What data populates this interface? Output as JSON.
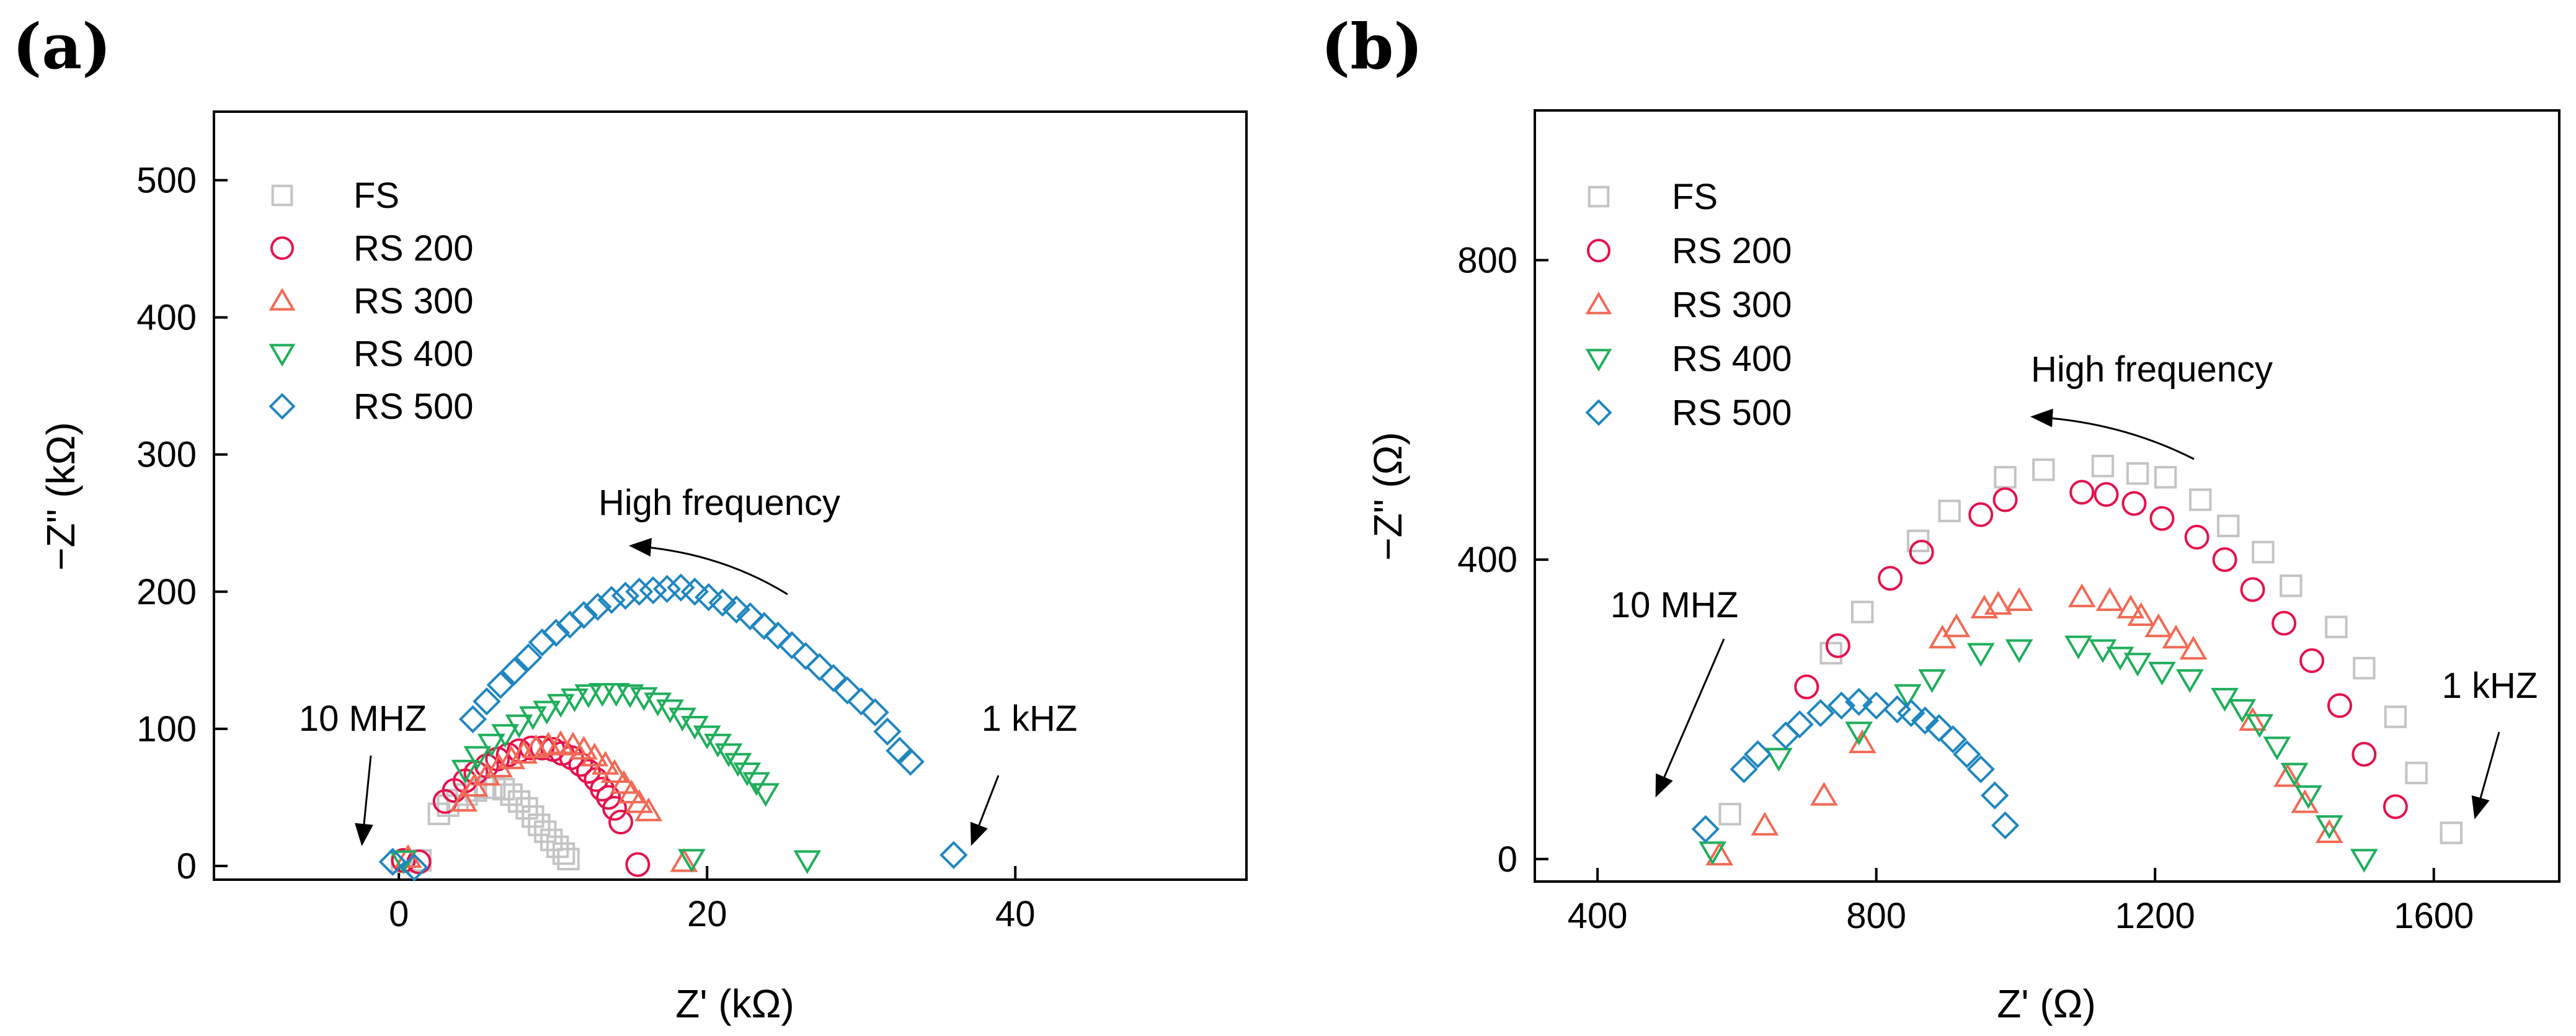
{
  "colors": {
    "FS": "#c4c4c4",
    "RS 200": "#e5124c",
    "RS 300": "#f26a55",
    "RS 400": "#1fae5b",
    "RS 500": "#1f86c0"
  },
  "markers": {
    "FS": "square",
    "RS 200": "circle",
    "RS 300": "triangle-up",
    "RS 400": "triangle-down",
    "RS 500": "diamond"
  },
  "chart_data": [
    {
      "type": "scatter",
      "panel_label": "(a)",
      "xlabel": "Z' (kΩ)",
      "ylabel": "−Z\" (kΩ)",
      "xlim": [
        -12,
        55
      ],
      "ylim": [
        -10,
        550
      ],
      "xticks": [
        0,
        20,
        40
      ],
      "yticks": [
        0,
        100,
        200,
        300,
        400,
        500
      ],
      "legend_position": "top-left",
      "legend": [
        "FS",
        "RS 200",
        "RS 300",
        "RS 400",
        "RS 500"
      ],
      "annotations": {
        "high_frequency": "High frequency",
        "low_label_left": "10 MHZ",
        "low_label_right": "1 kHZ"
      },
      "series": [
        {
          "name": "FS",
          "points": [
            [
              0.2,
              3
            ],
            [
              1.4,
              4
            ],
            [
              2.6,
              38
            ],
            [
              3.2,
              44
            ],
            [
              3.8,
              48
            ],
            [
              4.4,
              52
            ],
            [
              5.0,
              55
            ],
            [
              5.6,
              57
            ],
            [
              6.2,
              57
            ],
            [
              6.8,
              56
            ],
            [
              7.3,
              52
            ],
            [
              7.8,
              47
            ],
            [
              8.3,
              42
            ],
            [
              8.7,
              36
            ],
            [
              9.1,
              30
            ],
            [
              9.5,
              25
            ],
            [
              9.9,
              19
            ],
            [
              10.3,
              14
            ],
            [
              10.7,
              9
            ],
            [
              11.0,
              5
            ]
          ]
        },
        {
          "name": "RS 200",
          "points": [
            [
              0.3,
              4
            ],
            [
              1.3,
              3
            ],
            [
              3.0,
              47
            ],
            [
              3.6,
              55
            ],
            [
              4.3,
              62
            ],
            [
              5.0,
              68
            ],
            [
              5.7,
              73
            ],
            [
              6.4,
              78
            ],
            [
              7.1,
              81
            ],
            [
              7.8,
              84
            ],
            [
              8.6,
              86
            ],
            [
              9.3,
              86
            ],
            [
              10.0,
              85
            ],
            [
              10.6,
              82
            ],
            [
              11.2,
              79
            ],
            [
              11.8,
              74
            ],
            [
              12.3,
              69
            ],
            [
              12.8,
              63
            ],
            [
              13.2,
              56
            ],
            [
              13.6,
              50
            ],
            [
              14.0,
              42
            ],
            [
              14.4,
              32
            ],
            [
              15.5,
              1
            ]
          ]
        },
        {
          "name": "RS 300",
          "points": [
            [
              0.6,
              6
            ],
            [
              4.2,
              47
            ],
            [
              4.9,
              58
            ],
            [
              5.7,
              66
            ],
            [
              6.5,
              72
            ],
            [
              7.3,
              78
            ],
            [
              8.1,
              82
            ],
            [
              8.9,
              86
            ],
            [
              9.7,
              88
            ],
            [
              10.5,
              89
            ],
            [
              11.3,
              88
            ],
            [
              12.0,
              85
            ],
            [
              12.7,
              80
            ],
            [
              13.4,
              74
            ],
            [
              14.0,
              68
            ],
            [
              14.6,
              60
            ],
            [
              15.1,
              53
            ],
            [
              15.6,
              46
            ],
            [
              16.2,
              40
            ],
            [
              18.5,
              3
            ]
          ]
        },
        {
          "name": "RS 400",
          "points": [
            [
              0.3,
              4
            ],
            [
              4.3,
              70
            ],
            [
              5.1,
              80
            ],
            [
              6.0,
              89
            ],
            [
              6.9,
              96
            ],
            [
              7.8,
              103
            ],
            [
              8.7,
              109
            ],
            [
              9.6,
              113
            ],
            [
              10.5,
              118
            ],
            [
              11.4,
              122
            ],
            [
              12.3,
              125
            ],
            [
              13.2,
              126
            ],
            [
              14.1,
              126
            ],
            [
              15.0,
              125
            ],
            [
              15.9,
              123
            ],
            [
              16.8,
              119
            ],
            [
              17.6,
              114
            ],
            [
              18.4,
              108
            ],
            [
              19.2,
              102
            ],
            [
              20.0,
              95
            ],
            [
              20.7,
              89
            ],
            [
              21.4,
              82
            ],
            [
              22.0,
              75
            ],
            [
              22.6,
              68
            ],
            [
              23.2,
              61
            ],
            [
              23.8,
              53
            ],
            [
              19.0,
              5
            ],
            [
              26.5,
              4
            ]
          ]
        },
        {
          "name": "RS 500",
          "points": [
            [
              -0.4,
              3
            ],
            [
              1.0,
              -1
            ],
            [
              4.8,
              107
            ],
            [
              5.7,
              120
            ],
            [
              6.6,
              132
            ],
            [
              7.5,
              142
            ],
            [
              8.4,
              152
            ],
            [
              9.3,
              163
            ],
            [
              10.2,
              170
            ],
            [
              11.1,
              176
            ],
            [
              12.0,
              183
            ],
            [
              12.9,
              189
            ],
            [
              13.8,
              194
            ],
            [
              14.7,
              197
            ],
            [
              15.6,
              200
            ],
            [
              16.5,
              201
            ],
            [
              17.4,
              202
            ],
            [
              18.3,
              203
            ],
            [
              19.2,
              200
            ],
            [
              20.1,
              196
            ],
            [
              21.0,
              192
            ],
            [
              21.9,
              187
            ],
            [
              22.8,
              182
            ],
            [
              23.7,
              175
            ],
            [
              24.6,
              168
            ],
            [
              25.5,
              161
            ],
            [
              26.4,
              153
            ],
            [
              27.3,
              145
            ],
            [
              28.2,
              137
            ],
            [
              29.1,
              128
            ],
            [
              30.0,
              120
            ],
            [
              30.9,
              112
            ],
            [
              31.7,
              98
            ],
            [
              32.5,
              84
            ],
            [
              33.2,
              76
            ],
            [
              36.0,
              8
            ]
          ]
        }
      ]
    },
    {
      "type": "scatter",
      "panel_label": "(b)",
      "xlabel": "Z' (Ω)",
      "ylabel": "−Z\" (Ω)",
      "xlim": [
        310,
        1780
      ],
      "ylim": [
        -30,
        1000
      ],
      "xticks": [
        400,
        800,
        1200,
        1600
      ],
      "yticks": [
        0,
        400,
        800
      ],
      "legend_position": "top-left",
      "legend": [
        "FS",
        "RS 200",
        "RS 300",
        "RS 400",
        "RS 500"
      ],
      "annotations": {
        "high_frequency": "High frequency",
        "low_label_left": "10 MHZ",
        "low_label_right": "1 kHZ"
      },
      "series": [
        {
          "name": "FS",
          "points": [
            [
              590,
              60
            ],
            [
              735,
              275
            ],
            [
              780,
              330
            ],
            [
              860,
              425
            ],
            [
              905,
              465
            ],
            [
              985,
              510
            ],
            [
              1040,
              520
            ],
            [
              1125,
              525
            ],
            [
              1175,
              515
            ],
            [
              1215,
              510
            ],
            [
              1265,
              480
            ],
            [
              1305,
              445
            ],
            [
              1355,
              410
            ],
            [
              1395,
              365
            ],
            [
              1460,
              310
            ],
            [
              1500,
              255
            ],
            [
              1545,
              190
            ],
            [
              1575,
              115
            ],
            [
              1625,
              35
            ]
          ]
        },
        {
          "name": "RS 200",
          "points": [
            [
              700,
              230
            ],
            [
              745,
              285
            ],
            [
              820,
              375
            ],
            [
              865,
              410
            ],
            [
              950,
              460
            ],
            [
              985,
              480
            ],
            [
              1095,
              490
            ],
            [
              1130,
              487
            ],
            [
              1170,
              475
            ],
            [
              1210,
              455
            ],
            [
              1260,
              430
            ],
            [
              1300,
              400
            ],
            [
              1340,
              360
            ],
            [
              1385,
              315
            ],
            [
              1425,
              265
            ],
            [
              1465,
              205
            ],
            [
              1500,
              140
            ],
            [
              1545,
              70
            ]
          ]
        },
        {
          "name": "RS 300",
          "points": [
            [
              575,
              5
            ],
            [
              640,
              45
            ],
            [
              725,
              85
            ],
            [
              780,
              155
            ],
            [
              895,
              295
            ],
            [
              915,
              310
            ],
            [
              955,
              335
            ],
            [
              975,
              340
            ],
            [
              1005,
              345
            ],
            [
              1095,
              350
            ],
            [
              1135,
              345
            ],
            [
              1165,
              335
            ],
            [
              1180,
              325
            ],
            [
              1205,
              310
            ],
            [
              1230,
              295
            ],
            [
              1255,
              280
            ],
            [
              1340,
              185
            ],
            [
              1390,
              110
            ],
            [
              1415,
              75
            ],
            [
              1450,
              35
            ]
          ]
        },
        {
          "name": "RS 400",
          "points": [
            [
              565,
              10
            ],
            [
              660,
              135
            ],
            [
              775,
              170
            ],
            [
              845,
              220
            ],
            [
              880,
              240
            ],
            [
              950,
              275
            ],
            [
              1005,
              280
            ],
            [
              1090,
              285
            ],
            [
              1125,
              280
            ],
            [
              1150,
              270
            ],
            [
              1175,
              262
            ],
            [
              1210,
              250
            ],
            [
              1250,
              240
            ],
            [
              1300,
              215
            ],
            [
              1325,
              200
            ],
            [
              1350,
              180
            ],
            [
              1375,
              150
            ],
            [
              1400,
              115
            ],
            [
              1420,
              85
            ],
            [
              1450,
              45
            ],
            [
              1500,
              0
            ]
          ]
        },
        {
          "name": "RS 500",
          "points": [
            [
              555,
              40
            ],
            [
              610,
              120
            ],
            [
              630,
              140
            ],
            [
              670,
              165
            ],
            [
              690,
              180
            ],
            [
              720,
              195
            ],
            [
              750,
              205
            ],
            [
              775,
              210
            ],
            [
              800,
              205
            ],
            [
              830,
              200
            ],
            [
              850,
              195
            ],
            [
              870,
              185
            ],
            [
              890,
              175
            ],
            [
              910,
              160
            ],
            [
              930,
              140
            ],
            [
              950,
              120
            ],
            [
              970,
              85
            ],
            [
              985,
              45
            ]
          ]
        }
      ]
    }
  ]
}
